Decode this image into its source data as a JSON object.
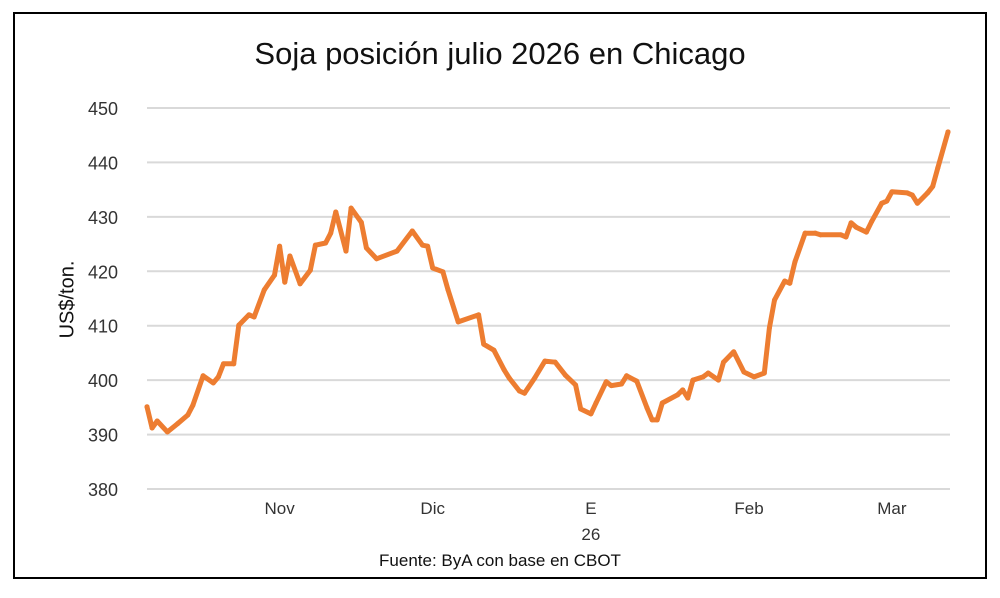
{
  "chart_data": {
    "type": "line",
    "title": "Soja posición julio 2026 en Chicago",
    "ylabel": "US$/ton.",
    "xlabel": "",
    "source": "Fuente: ByA con base en CBOT",
    "ylim": [
      380,
      450
    ],
    "yticks": [
      380,
      390,
      400,
      410,
      420,
      430,
      440,
      450
    ],
    "grid": true,
    "line_color": "#ED7D31",
    "xlim": [
      "2025-10-06",
      "2026-03-12"
    ],
    "xticks": [
      {
        "date": "2025-11-01",
        "label": "Nov",
        "sub": ""
      },
      {
        "date": "2025-12-01",
        "label": "Dic",
        "sub": ""
      },
      {
        "date": "2026-01-01",
        "label": "E",
        "sub": "26"
      },
      {
        "date": "2026-02-01",
        "label": "Feb",
        "sub": ""
      },
      {
        "date": "2026-03-01",
        "label": "Mar",
        "sub": ""
      }
    ],
    "points": [
      [
        "2025-10-06",
        395.1
      ],
      [
        "2025-10-07",
        391.2
      ],
      [
        "2025-10-08",
        392.5
      ],
      [
        "2025-10-10",
        390.5
      ],
      [
        "2025-10-12",
        392.0
      ],
      [
        "2025-10-14",
        393.6
      ],
      [
        "2025-10-15",
        395.4
      ],
      [
        "2025-10-17",
        400.8
      ],
      [
        "2025-10-19",
        399.5
      ],
      [
        "2025-10-20",
        400.6
      ],
      [
        "2025-10-21",
        403.0
      ],
      [
        "2025-10-23",
        403.0
      ],
      [
        "2025-10-24",
        410.1
      ],
      [
        "2025-10-26",
        412.0
      ],
      [
        "2025-10-27",
        411.6
      ],
      [
        "2025-10-29",
        416.6
      ],
      [
        "2025-10-31",
        419.3
      ],
      [
        "2025-11-01",
        424.6
      ],
      [
        "2025-11-02",
        418.0
      ],
      [
        "2025-11-03",
        422.8
      ],
      [
        "2025-11-05",
        417.7
      ],
      [
        "2025-11-07",
        420.2
      ],
      [
        "2025-11-08",
        424.8
      ],
      [
        "2025-11-10",
        425.2
      ],
      [
        "2025-11-11",
        427.0
      ],
      [
        "2025-11-12",
        430.9
      ],
      [
        "2025-11-14",
        423.7
      ],
      [
        "2025-11-15",
        431.6
      ],
      [
        "2025-11-17",
        429.0
      ],
      [
        "2025-11-18",
        424.3
      ],
      [
        "2025-11-20",
        422.3
      ],
      [
        "2025-11-24",
        423.7
      ],
      [
        "2025-11-27",
        427.4
      ],
      [
        "2025-11-29",
        424.8
      ],
      [
        "2025-11-30",
        424.6
      ],
      [
        "2025-12-01",
        420.6
      ],
      [
        "2025-12-03",
        419.9
      ],
      [
        "2025-12-04",
        416.6
      ],
      [
        "2025-12-06",
        410.7
      ],
      [
        "2025-12-10",
        412.0
      ],
      [
        "2025-12-11",
        406.6
      ],
      [
        "2025-12-13",
        405.5
      ],
      [
        "2025-12-15",
        401.9
      ],
      [
        "2025-12-16",
        400.4
      ],
      [
        "2025-12-18",
        398.0
      ],
      [
        "2025-12-19",
        397.6
      ],
      [
        "2025-12-21",
        400.4
      ],
      [
        "2025-12-23",
        403.5
      ],
      [
        "2025-12-25",
        403.3
      ],
      [
        "2025-12-27",
        400.9
      ],
      [
        "2025-12-29",
        399.1
      ],
      [
        "2025-12-30",
        394.7
      ],
      [
        "2026-01-01",
        393.8
      ],
      [
        "2026-01-02",
        395.8
      ],
      [
        "2026-01-04",
        399.7
      ],
      [
        "2026-01-05",
        399.0
      ],
      [
        "2026-01-07",
        399.3
      ],
      [
        "2026-01-08",
        400.8
      ],
      [
        "2026-01-10",
        399.8
      ],
      [
        "2026-01-12",
        394.9
      ],
      [
        "2026-01-13",
        392.7
      ],
      [
        "2026-01-14",
        392.7
      ],
      [
        "2026-01-15",
        395.8
      ],
      [
        "2026-01-18",
        397.3
      ],
      [
        "2026-01-19",
        398.2
      ],
      [
        "2026-01-20",
        396.7
      ],
      [
        "2026-01-21",
        400.0
      ],
      [
        "2026-01-23",
        400.6
      ],
      [
        "2026-01-24",
        401.3
      ],
      [
        "2026-01-26",
        400.0
      ],
      [
        "2026-01-27",
        403.3
      ],
      [
        "2026-01-29",
        405.2
      ],
      [
        "2026-01-31",
        401.5
      ],
      [
        "2026-02-02",
        400.6
      ],
      [
        "2026-02-04",
        401.3
      ],
      [
        "2026-02-05",
        409.6
      ],
      [
        "2026-02-06",
        414.7
      ],
      [
        "2026-02-08",
        418.2
      ],
      [
        "2026-02-09",
        417.8
      ],
      [
        "2026-02-10",
        421.7
      ],
      [
        "2026-02-12",
        427.0
      ],
      [
        "2026-02-14",
        427.0
      ],
      [
        "2026-02-15",
        426.7
      ],
      [
        "2026-02-19",
        426.7
      ],
      [
        "2026-02-20",
        426.3
      ],
      [
        "2026-02-21",
        428.9
      ],
      [
        "2026-02-22",
        428.1
      ],
      [
        "2026-02-24",
        427.2
      ],
      [
        "2026-02-25",
        429.1
      ],
      [
        "2026-02-27",
        432.5
      ],
      [
        "2026-02-28",
        432.9
      ],
      [
        "2026-03-01",
        434.6
      ],
      [
        "2026-03-04",
        434.4
      ],
      [
        "2026-03-05",
        434.0
      ],
      [
        "2026-03-06",
        432.5
      ],
      [
        "2026-03-08",
        434.4
      ],
      [
        "2026-03-09",
        435.6
      ],
      [
        "2026-03-10",
        439.0
      ],
      [
        "2026-03-12",
        445.6
      ]
    ]
  }
}
